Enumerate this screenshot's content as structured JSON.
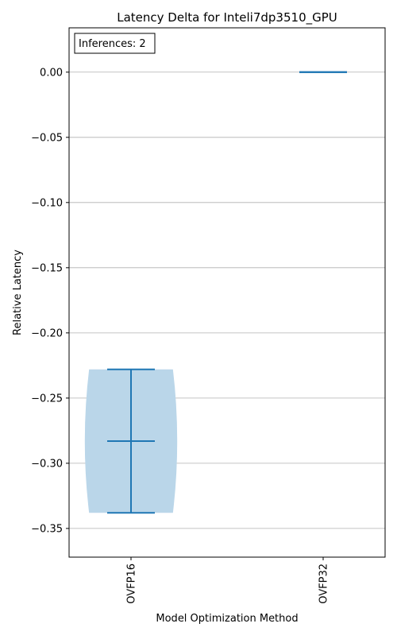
{
  "chart_data": {
    "type": "violin",
    "title": "Latency Delta  for Inteli7dp3510_GPU",
    "xlabel": "Model Optimization Method",
    "ylabel": "Relative Latency",
    "categories": [
      "OVFP16",
      "OVFP32"
    ],
    "annotation": "Inferences: 2",
    "ylim": [
      -0.372,
      0.034
    ],
    "yticks": [
      0.0,
      -0.05,
      -0.1,
      -0.15,
      -0.2,
      -0.25,
      -0.3,
      -0.35
    ],
    "ytick_labels": [
      "0.00",
      "−0.05",
      "−0.10",
      "−0.15",
      "−0.20",
      "−0.25",
      "−0.30",
      "−0.35"
    ],
    "grid": "y",
    "violins": [
      {
        "category": "OVFP16",
        "min": -0.338,
        "mean": -0.283,
        "max": -0.228
      },
      {
        "category": "OVFP32",
        "min": 0.0,
        "mean": 0.0,
        "max": 0.0
      }
    ],
    "colors": {
      "body": "#bad6e9",
      "line": "#1f77b4",
      "grid": "#b0b0b0"
    }
  }
}
